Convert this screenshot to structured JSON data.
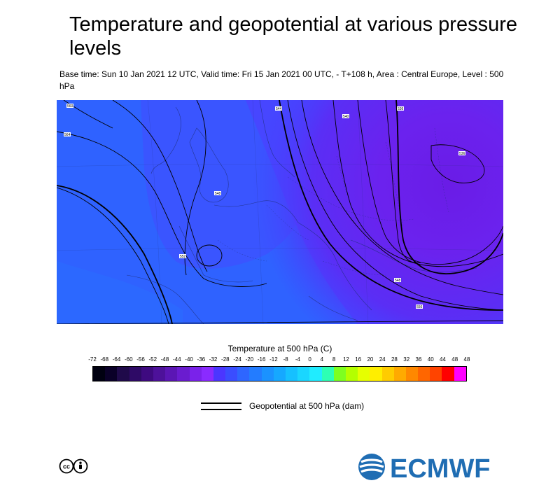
{
  "header": {
    "title": "Temperature and geopotential at various pressure levels",
    "subtitle": "Base time: Sun 10 Jan 2021 12 UTC, Valid time: Fri 15 Jan 2021 00 UTC, - T+108 h, Area : Central Europe, Level : 500 hPa"
  },
  "map": {
    "contour_labels": [
      "536",
      "540",
      "544",
      "548",
      "552",
      "556",
      "560",
      "564"
    ]
  },
  "legend": {
    "temperature_title": "Temperature at 500 hPa (C)",
    "ticks": [
      "-72",
      "-68",
      "-64",
      "-60",
      "-56",
      "-52",
      "-48",
      "-44",
      "-40",
      "-36",
      "-32",
      "-28",
      "-24",
      "-20",
      "-16",
      "-12",
      "-8",
      "-4",
      "0",
      "4",
      "8",
      "12",
      "16",
      "20",
      "24",
      "28",
      "32",
      "36",
      "40",
      "44",
      "48",
      "48"
    ],
    "colors": [
      "#000010",
      "#0a0028",
      "#1f0a4a",
      "#2e0a66",
      "#3e0a80",
      "#4d119a",
      "#5b16b4",
      "#6a1ccf",
      "#7a22ea",
      "#8a2bff",
      "#4b36ff",
      "#3a4dff",
      "#2e66ff",
      "#237cff",
      "#1b92ff",
      "#16a8ff",
      "#16c0ff",
      "#1ad6ff",
      "#20ecff",
      "#2dffb4",
      "#7dff20",
      "#b4ff00",
      "#e6ff00",
      "#ffee00",
      "#ffcc00",
      "#ffaa00",
      "#ff8800",
      "#ff6600",
      "#ff4400",
      "#ff0000",
      "#ff00ff"
    ],
    "geopotential_label": "Geopotential at 500 hPa (dam)"
  },
  "branding": {
    "license_icon": "cc-by-icon",
    "logo_text": "ECMWF",
    "logo_color": "#1f6db3"
  }
}
